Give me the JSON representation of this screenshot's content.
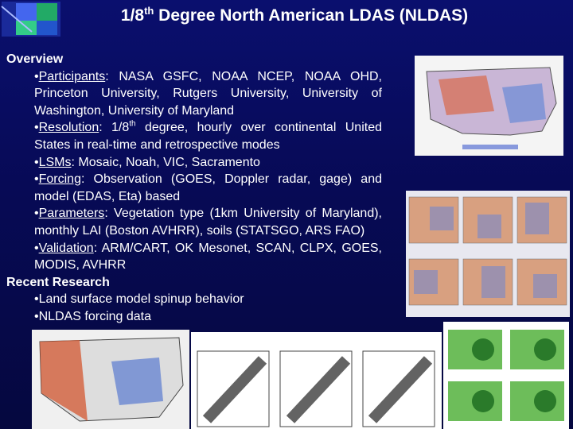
{
  "header": {
    "title": [
      {
        "text": "1/8"
      },
      {
        "text": "th",
        "style": "sup"
      },
      {
        "text": " Degree North American LDAS (NLDAS)"
      }
    ]
  },
  "sections": [
    {
      "heading": "Overview",
      "bullets": [
        {
          "parts": [
            {
              "text": "•"
            },
            {
              "text": "Participants",
              "style": "underline"
            },
            {
              "text": ": NASA GSFC, NOAA NCEP, NOAA OHD, Princeton University, Rutgers University, University of Washington, University of Maryland"
            }
          ]
        },
        {
          "parts": [
            {
              "text": "•"
            },
            {
              "text": "Resolution",
              "style": "underline"
            },
            {
              "text": ":  1/8"
            },
            {
              "text": "th",
              "style": "sup"
            },
            {
              "text": " degree, hourly over continental United States in real-time and retrospective modes"
            }
          ]
        },
        {
          "parts": [
            {
              "text": "•"
            },
            {
              "text": "LSMs",
              "style": "underline"
            },
            {
              "text": ": Mosaic, Noah, VIC, Sacramento"
            }
          ]
        },
        {
          "parts": [
            {
              "text": "•"
            },
            {
              "text": "Forcing",
              "style": "underline"
            },
            {
              "text": ": Observation (GOES, Doppler radar, gage) and model (EDAS, Eta) based"
            }
          ]
        },
        {
          "parts": [
            {
              "text": "•"
            },
            {
              "text": "Parameters",
              "style": "underline"
            },
            {
              "text": ": Vegetation type (1km University of Maryland), monthly LAI (Boston AVHRR), soils (STATSGO, ARS FAO)"
            }
          ]
        },
        {
          "parts": [
            {
              "text": "•"
            },
            {
              "text": "Validation",
              "style": "underline"
            },
            {
              "text": ": ARM/CART, OK Mesonet, SCAN, CLPX, GOES, MODIS, AVHRR"
            }
          ]
        }
      ]
    },
    {
      "heading": "Recent Research",
      "bullets": [
        {
          "parts": [
            {
              "text": "•"
            },
            {
              "text": "Land surface model spinup behavior"
            }
          ]
        },
        {
          "parts": [
            {
              "text": "•"
            },
            {
              "text": "NLDAS forcing data"
            }
          ]
        }
      ]
    }
  ]
}
